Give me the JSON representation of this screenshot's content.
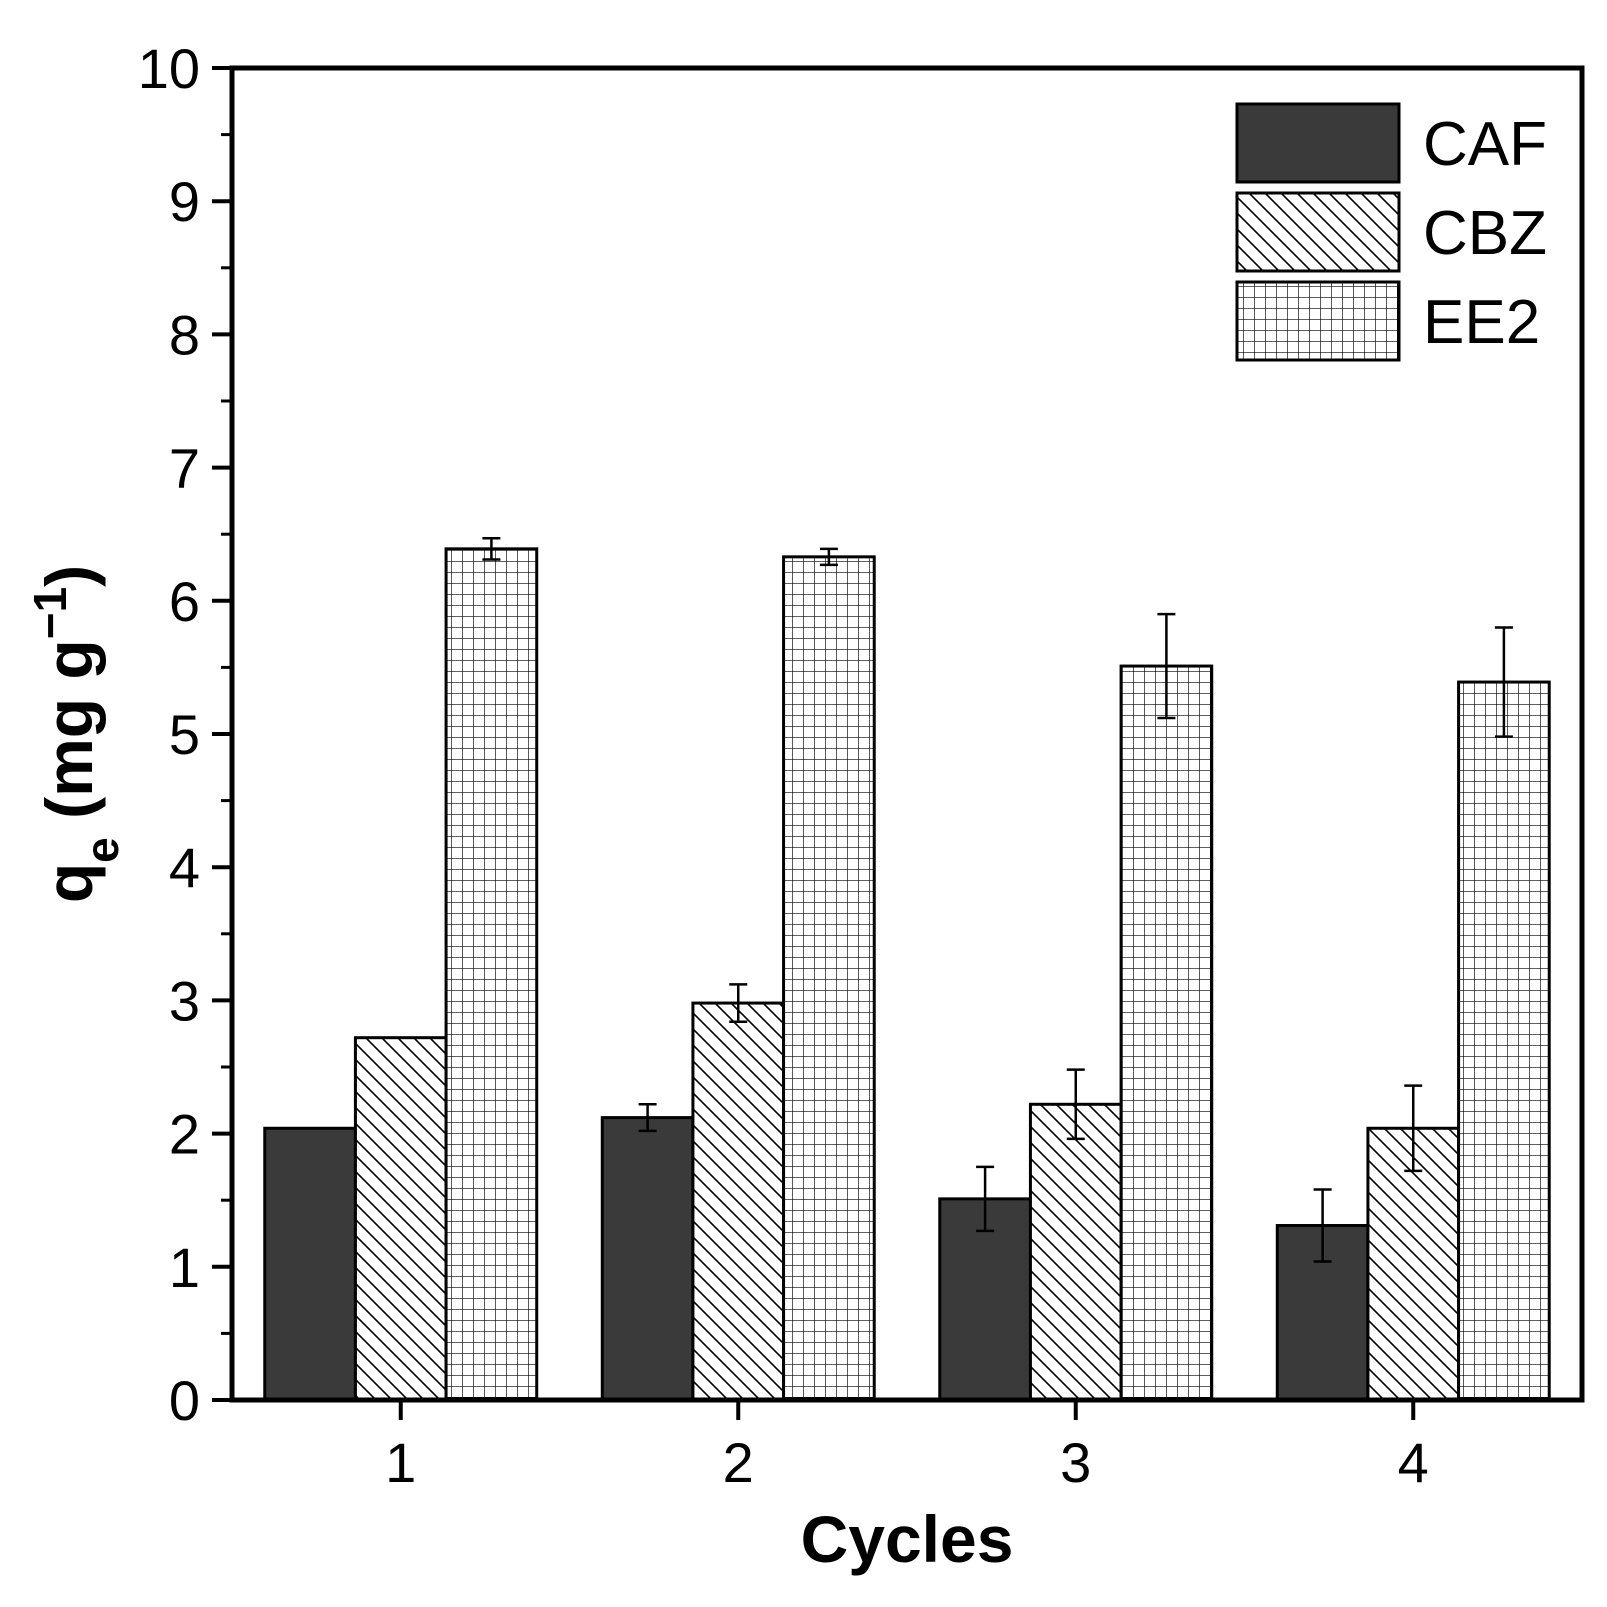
{
  "chart_data": {
    "type": "bar",
    "categories": [
      "1",
      "2",
      "3",
      "4"
    ],
    "xlabel": "Cycles",
    "ylabel": {
      "main": "q",
      "sub": "e",
      "open": " (mg g",
      "sup": "−1",
      "close": ")"
    },
    "ylim": [
      0,
      10
    ],
    "yticks": [
      0,
      1,
      2,
      3,
      4,
      5,
      6,
      7,
      8,
      9,
      10
    ],
    "yminor_step": 0.5,
    "grid": false,
    "legend_position": "top-right",
    "series": [
      {
        "name": "CAF",
        "pattern": "solid",
        "color": "#3a3a3a",
        "values": [
          2.04,
          2.12,
          1.51,
          1.31
        ],
        "errors": [
          0.0,
          0.1,
          0.24,
          0.27
        ]
      },
      {
        "name": "CBZ",
        "pattern": "diagonal-hatch",
        "color": "#000000",
        "values": [
          2.72,
          2.98,
          2.22,
          2.04
        ],
        "errors": [
          0.0,
          0.14,
          0.26,
          0.32
        ]
      },
      {
        "name": "EE2",
        "pattern": "crosshatch",
        "color": "#000000",
        "values": [
          6.39,
          6.33,
          5.51,
          5.39
        ],
        "errors": [
          0.08,
          0.06,
          0.39,
          0.41
        ]
      }
    ]
  }
}
